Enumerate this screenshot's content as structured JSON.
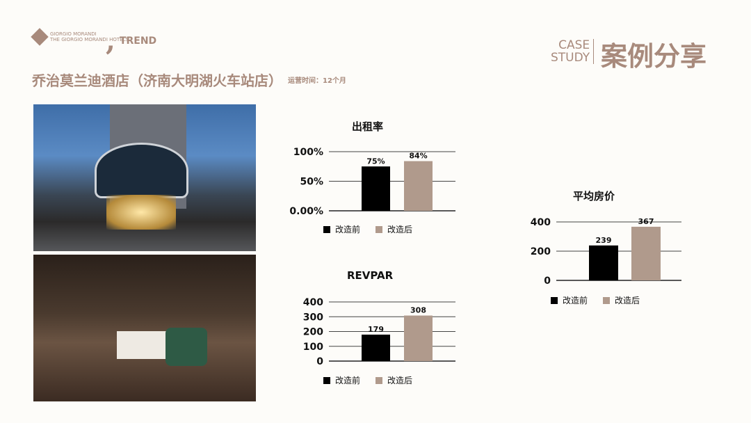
{
  "header": {
    "logo1_line1": "GIORGIO MORANDI",
    "logo1_line2": "THE GIORGIO MORANDI HOTELS",
    "logo2_text": "TREND",
    "title": "乔治莫兰迪酒店（济南大明湖火车站店）",
    "subtitle": "运营时间：12个月",
    "case_line1": "CASE",
    "case_line2": "STUDY",
    "case_cn": "案例分享"
  },
  "colors": {
    "accent": "#a88a7c",
    "before": "#000000",
    "after": "#b09a8c"
  },
  "legend": {
    "before": "改造前",
    "after": "改造后"
  },
  "chart_data": [
    {
      "type": "bar",
      "title": "出租率",
      "categories": [
        "改造前",
        "改造后"
      ],
      "values": [
        75,
        84
      ],
      "labels": [
        "75%",
        "84%"
      ],
      "yticks": [
        "0.00%",
        "50%",
        "100%"
      ],
      "ytick_values": [
        0,
        50,
        100
      ],
      "ylim": [
        0,
        100
      ],
      "grid": true,
      "legend": "bottom"
    },
    {
      "type": "bar",
      "title": "REVPAR",
      "categories": [
        "改造前",
        "改造后"
      ],
      "values": [
        179,
        308
      ],
      "labels": [
        "179",
        "308"
      ],
      "yticks": [
        "0",
        "100",
        "200",
        "300",
        "400"
      ],
      "ytick_values": [
        0,
        100,
        200,
        300,
        400
      ],
      "ylim": [
        0,
        400
      ],
      "grid": true,
      "legend": "bottom"
    },
    {
      "type": "bar",
      "title": "平均房价",
      "categories": [
        "改造前",
        "改造后"
      ],
      "values": [
        239,
        367
      ],
      "labels": [
        "239",
        "367"
      ],
      "yticks": [
        "0",
        "200",
        "400"
      ],
      "ytick_values": [
        0,
        200,
        400
      ],
      "ylim": [
        0,
        400
      ],
      "grid": true,
      "legend": "bottom"
    }
  ]
}
